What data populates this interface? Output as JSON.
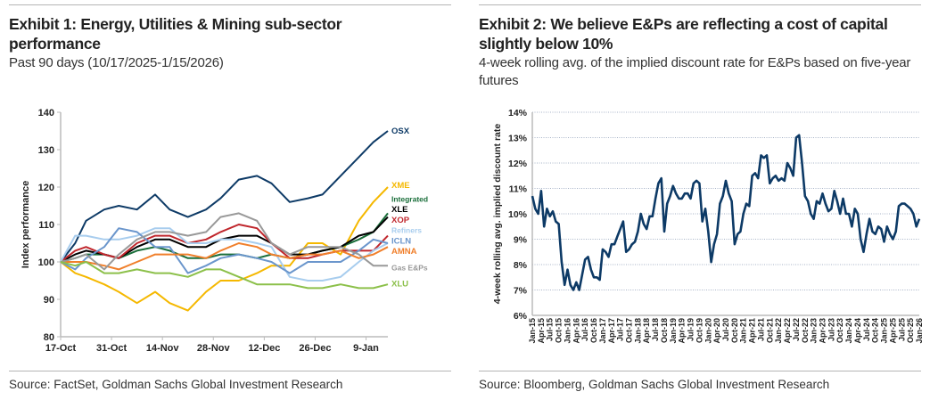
{
  "exhibit1": {
    "title": "Exhibit 1: Energy, Utilities & Mining sub-sector performance",
    "subtitle": "Past 90 days (10/17/2025-1/15/2026)",
    "source": "Source: FactSet, Goldman Sachs Global Investment Research"
  },
  "exhibit2": {
    "title": "Exhibit 2: We believe E&Ps are reflecting a cost of capital slightly below 10%",
    "subtitle": "4-week rolling avg. of the implied discount rate for E&Ps based on five-year futures",
    "source": "Source: Bloomberg, Goldman Sachs Global Investment Research"
  },
  "chart_data": [
    {
      "type": "line",
      "title": "",
      "xlabel": "",
      "ylabel": "Index performance",
      "ylim": [
        80,
        140
      ],
      "yticks": [
        80,
        90,
        100,
        110,
        120,
        130,
        140
      ],
      "xlim": [
        "2025-10-17",
        "2026-01-15"
      ],
      "xticks": [
        "17-Oct",
        "31-Oct",
        "14-Nov",
        "28-Nov",
        "12-Dec",
        "26-Dec",
        "9-Jan"
      ],
      "grid": false,
      "legend": "right-end labels",
      "x": [
        "2025-10-17",
        "2025-10-21",
        "2025-10-24",
        "2025-10-29",
        "2025-11-02",
        "2025-11-07",
        "2025-11-12",
        "2025-11-16",
        "2025-11-21",
        "2025-11-26",
        "2025-11-30",
        "2025-12-05",
        "2025-12-10",
        "2025-12-14",
        "2025-12-19",
        "2025-12-24",
        "2025-12-28",
        "2026-01-02",
        "2026-01-07",
        "2026-01-11",
        "2026-01-15"
      ],
      "series": [
        {
          "name": "OSX",
          "color": "#0d3a66",
          "values": [
            100,
            105,
            111,
            114,
            115,
            114,
            118,
            114,
            112,
            114,
            117,
            122,
            123,
            121,
            116,
            117,
            118,
            123,
            128,
            132,
            135
          ]
        },
        {
          "name": "XME",
          "color": "#f5b800",
          "values": [
            100,
            97,
            96,
            94,
            92,
            89,
            92,
            89,
            87,
            92,
            95,
            95,
            97,
            99,
            99,
            105,
            105,
            102,
            111,
            116,
            120
          ]
        },
        {
          "name": "Integrated",
          "color": "#1a6e3a",
          "values": [
            100,
            101,
            102,
            102,
            101,
            103,
            104,
            103,
            101,
            101,
            102,
            102,
            101,
            102,
            101,
            102,
            103,
            104,
            106,
            108,
            113
          ]
        },
        {
          "name": "XLE",
          "color": "#000000",
          "values": [
            100,
            102,
            103,
            102,
            101,
            104,
            106,
            106,
            104,
            104,
            106,
            107,
            107,
            105,
            102,
            102,
            103,
            104,
            107,
            108,
            112
          ]
        },
        {
          "name": "XOP",
          "color": "#c0272d",
          "values": [
            100,
            103,
            104,
            102,
            101,
            105,
            107,
            107,
            105,
            106,
            108,
            110,
            109,
            105,
            101,
            101,
            102,
            103,
            103,
            103,
            107
          ]
        },
        {
          "name": "Refiners",
          "color": "#a8cdee",
          "values": [
            100,
            107,
            107,
            106,
            106,
            107,
            109,
            109,
            105,
            105,
            106,
            106,
            105,
            104,
            96,
            95,
            95,
            96,
            100,
            103,
            105
          ]
        },
        {
          "name": "ICLN",
          "color": "#6b96cc",
          "values": [
            100,
            98,
            101,
            104,
            109,
            108,
            104,
            104,
            97,
            99,
            101,
            102,
            101,
            100,
            97,
            100,
            100,
            100,
            103,
            106,
            105
          ]
        },
        {
          "name": "AMNA",
          "color": "#f07f2b",
          "values": [
            100,
            100,
            100,
            99,
            98,
            100,
            102,
            102,
            102,
            101,
            103,
            105,
            104,
            102,
            101,
            102,
            102,
            103,
            101,
            102,
            104
          ]
        },
        {
          "name": "Gas E&Ps",
          "color": "#999999",
          "values": [
            100,
            101,
            102,
            98,
            102,
            106,
            108,
            108,
            107,
            108,
            112,
            113,
            111,
            105,
            102,
            104,
            104,
            104,
            102,
            99,
            99
          ]
        },
        {
          "name": "XLU",
          "color": "#8cc04a",
          "values": [
            100,
            99,
            100,
            97,
            97,
            98,
            97,
            97,
            96,
            98,
            98,
            96,
            94,
            94,
            94,
            93,
            93,
            94,
            93,
            93,
            94
          ]
        }
      ]
    },
    {
      "type": "line",
      "title": "",
      "xlabel": "",
      "ylabel": "4-week rolling avg. implied discount rate",
      "ylim": [
        6,
        14
      ],
      "yticks": [
        "6%",
        "7%",
        "8%",
        "9%",
        "10%",
        "11%",
        "12%",
        "13%",
        "14%"
      ],
      "grid": true,
      "x_start": "Jan-15",
      "x_frequency": "monthly",
      "xticks": [
        "Jan-15",
        "Apr-15",
        "Jul-15",
        "Oct-15",
        "Jan-16",
        "Apr-16",
        "Jul-16",
        "Oct-16",
        "Jan-17",
        "Apr-17",
        "Jul-17",
        "Oct-17",
        "Jan-18",
        "Apr-18",
        "Jul-18",
        "Oct-18",
        "Jan-19",
        "Apr-19",
        "Jul-19",
        "Oct-19",
        "Jan-20",
        "Apr-20",
        "Jul-20",
        "Oct-20",
        "Jan-21",
        "Apr-21",
        "Jul-21",
        "Oct-21",
        "Jan-22",
        "Apr-22",
        "Jul-22",
        "Oct-22",
        "Jan-23",
        "Apr-23",
        "Jul-23",
        "Oct-23",
        "Jan-24",
        "Apr-24",
        "Jul-24",
        "Oct-24",
        "Jan-25",
        "Apr-25",
        "Jul-25",
        "Oct-25",
        "Jan-26"
      ],
      "color": "#0d3a66",
      "values": [
        10.7,
        10.2,
        10.0,
        10.9,
        9.5,
        10.2,
        9.9,
        10.1,
        9.7,
        9.6,
        8.1,
        7.2,
        7.8,
        7.2,
        7.0,
        7.3,
        7.0,
        7.6,
        8.2,
        8.3,
        7.8,
        7.5,
        7.5,
        7.4,
        8.6,
        8.5,
        8.3,
        8.8,
        8.8,
        9.1,
        9.4,
        9.7,
        8.5,
        8.6,
        8.8,
        8.9,
        9.3,
        10.0,
        9.6,
        9.4,
        9.9,
        9.9,
        10.6,
        11.2,
        11.4,
        9.3,
        10.4,
        10.7,
        11.1,
        10.8,
        10.6,
        10.6,
        10.8,
        10.8,
        10.6,
        11.2,
        11.3,
        11.2,
        9.7,
        10.2,
        9.3,
        8.1,
        8.8,
        9.2,
        10.4,
        10.7,
        11.3,
        10.8,
        10.5,
        8.8,
        9.2,
        9.3,
        10.0,
        10.4,
        10.3,
        11.5,
        11.6,
        11.4,
        12.3,
        12.2,
        12.3,
        11.2,
        11.4,
        11.5,
        11.3,
        11.4,
        11.3,
        12.0,
        11.8,
        11.5,
        13.0,
        13.1,
        12.0,
        10.7,
        10.5,
        10.0,
        9.8,
        10.5,
        10.4,
        10.8,
        10.4,
        10.1,
        10.2,
        10.9,
        10.5,
        10.0,
        10.6,
        10.0,
        10.0,
        9.5,
        10.2,
        10.0,
        9.0,
        8.5,
        9.2,
        9.8,
        9.3,
        9.2,
        9.5,
        9.4,
        8.9,
        9.5,
        9.2,
        9.0,
        9.3,
        10.3,
        10.4,
        10.4,
        10.3,
        10.2,
        10.0,
        9.5,
        9.8
      ]
    }
  ]
}
